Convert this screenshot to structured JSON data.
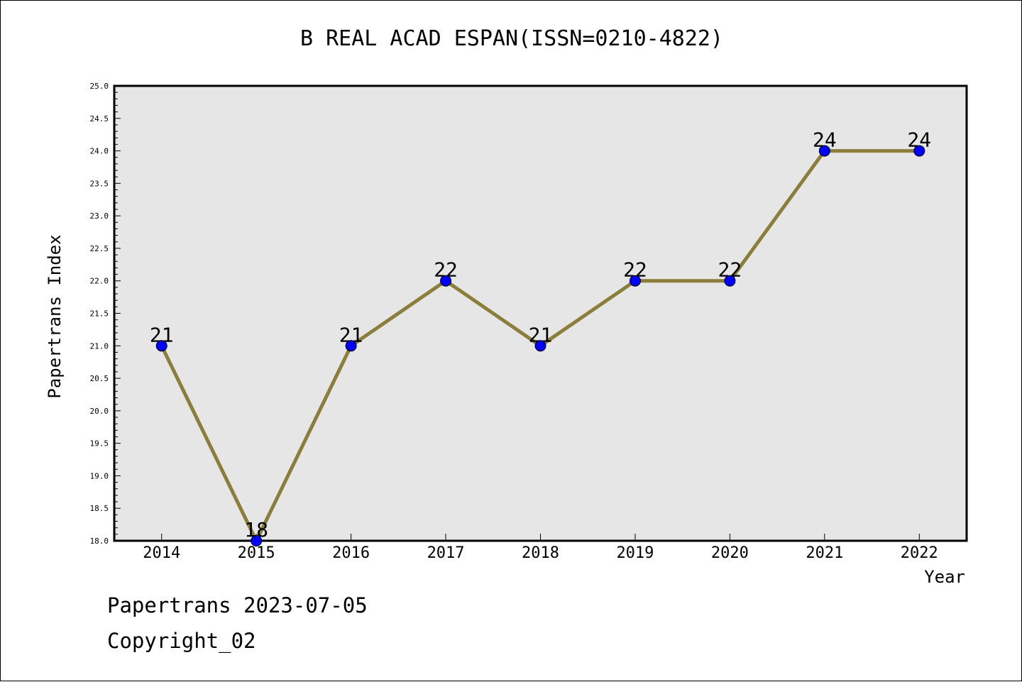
{
  "chart_data": {
    "type": "line",
    "title": "B REAL ACAD ESPAN(ISSN=0210-4822)",
    "xlabel": "Year",
    "ylabel": "Papertrans Index",
    "x": [
      2014,
      2015,
      2016,
      2017,
      2018,
      2019,
      2020,
      2021,
      2022
    ],
    "series": [
      {
        "values": [
          21,
          18,
          21,
          22,
          21,
          22,
          22,
          24,
          24
        ]
      }
    ],
    "data_labels": [
      "21",
      "18",
      "21",
      "22",
      "21",
      "22",
      "22",
      "24",
      "24"
    ],
    "y_ticks": [
      "18.0",
      "18.5",
      "19.0",
      "19.5",
      "20.0",
      "20.5",
      "21.0",
      "21.5",
      "22.0",
      "22.5",
      "23.0",
      "23.5",
      "24.0",
      "24.5",
      "25.0"
    ],
    "ylim": [
      18.0,
      25.0
    ],
    "xlim": [
      2013.5,
      2022.5
    ],
    "grid": false,
    "legend": "none",
    "colors": {
      "line": "#8B7D3A",
      "marker": "#0000FF",
      "plot_background": "#E6E6E6"
    }
  },
  "footer": {
    "date_text": "Papertrans 2023-07-05",
    "copyright_text": "Copyright_02"
  }
}
